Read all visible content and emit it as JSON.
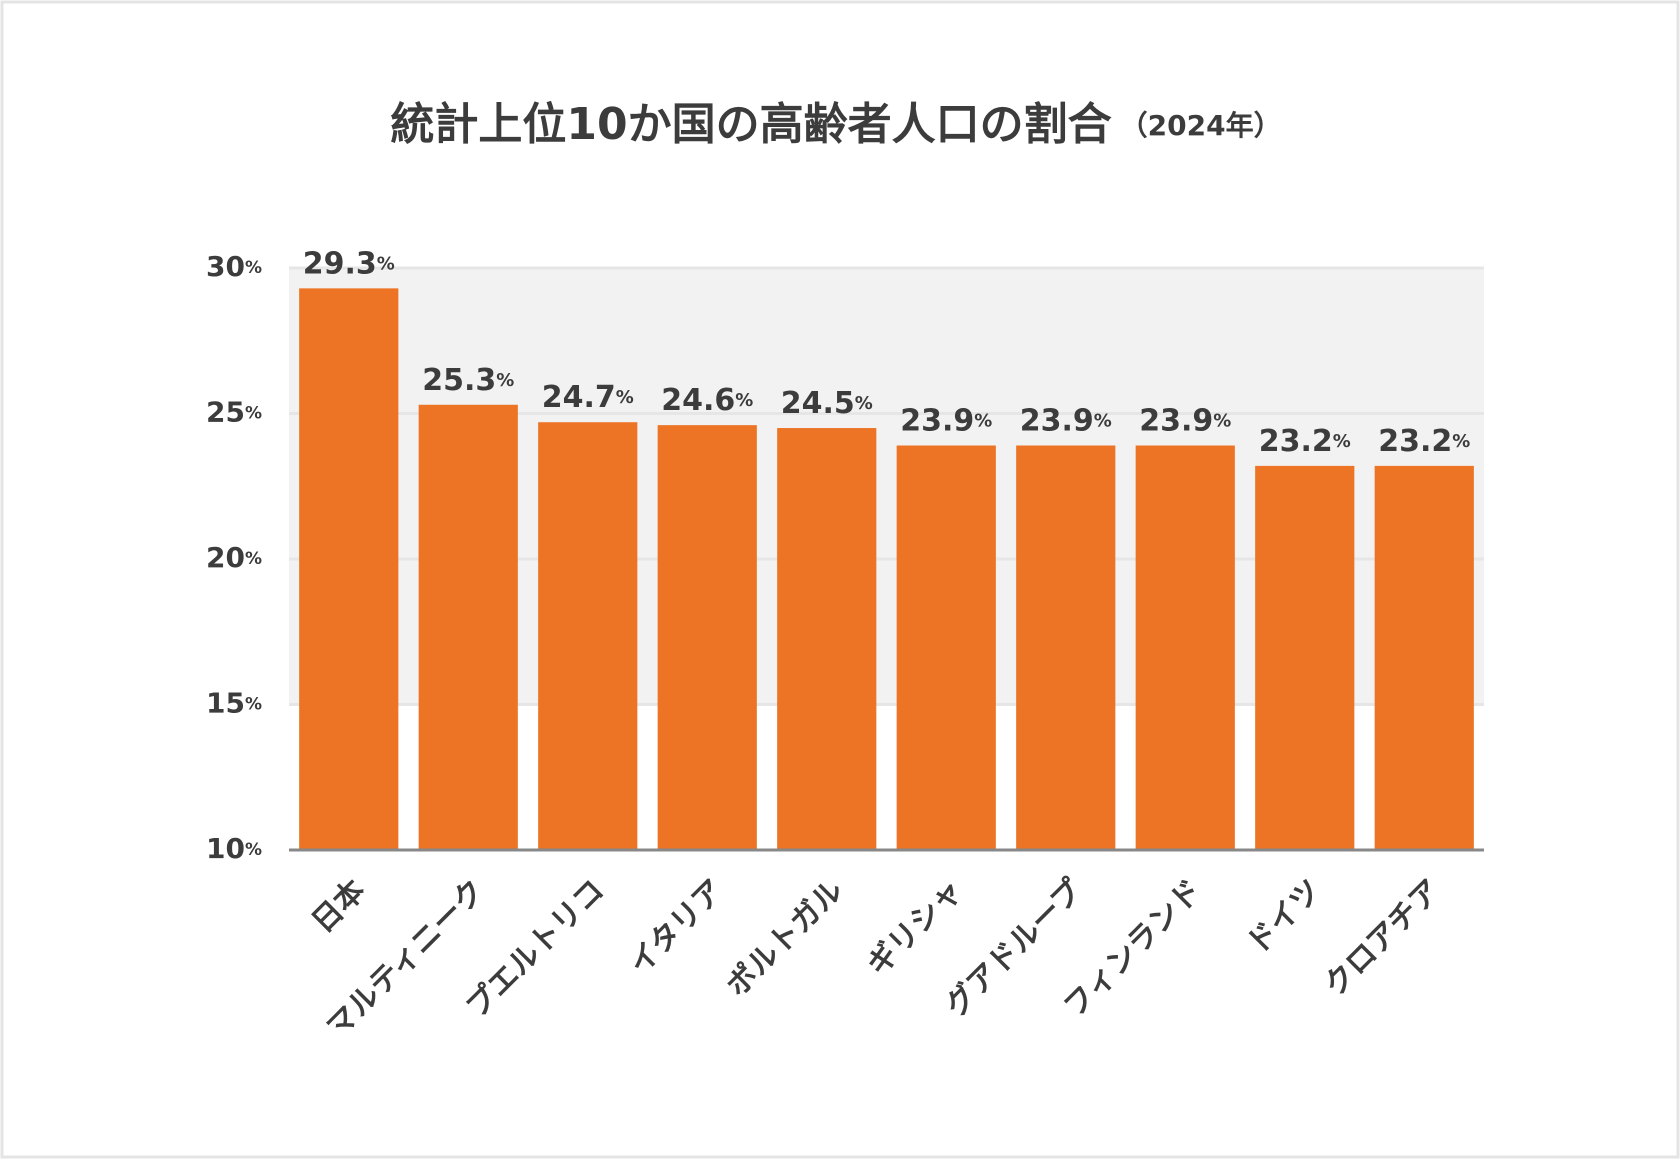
{
  "chart_data": {
    "type": "bar",
    "title": "統計上位10か国の高齢者人口の割合",
    "subtitle": "（2024年）",
    "categories": [
      "日本",
      "マルティニーク",
      "プエルトリコ",
      "イタリア",
      "ポルトガル",
      "ギリシャ",
      "グアドループ",
      "フィンランド",
      "ドイツ",
      "クロアチア"
    ],
    "values": [
      29.3,
      25.3,
      24.7,
      24.6,
      24.5,
      23.9,
      23.9,
      23.9,
      23.2,
      23.2
    ],
    "value_labels": [
      "29.3%",
      "25.3%",
      "24.7%",
      "24.6%",
      "24.5%",
      "23.9%",
      "23.9%",
      "23.9%",
      "23.2%",
      "23.2%"
    ],
    "color": "#ec7424",
    "ylim": [
      10,
      30
    ],
    "yticks": [
      {
        "value": 10,
        "label": "10%"
      },
      {
        "value": 15,
        "label": "15%"
      },
      {
        "value": 20,
        "label": "20%"
      },
      {
        "value": 25,
        "label": "25%"
      },
      {
        "value": 30,
        "label": "30%"
      }
    ],
    "grid": true
  }
}
